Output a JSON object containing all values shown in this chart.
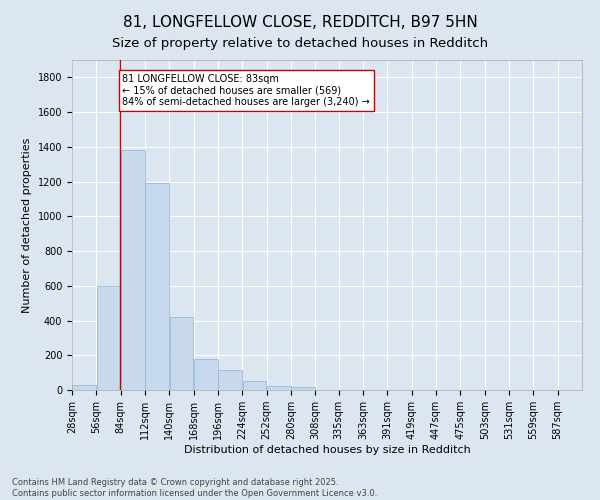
{
  "title": "81, LONGFELLOW CLOSE, REDDITCH, B97 5HN",
  "subtitle": "Size of property relative to detached houses in Redditch",
  "xlabel": "Distribution of detached houses by size in Redditch",
  "ylabel": "Number of detached properties",
  "bar_color": "#c8d9ed",
  "bar_edge_color": "#8ab4d8",
  "background_color": "#dce6f0",
  "fig_background_color": "#dce6f0",
  "grid_color": "#ffffff",
  "categories": [
    "28sqm",
    "56sqm",
    "84sqm",
    "112sqm",
    "140sqm",
    "168sqm",
    "196sqm",
    "224sqm",
    "252sqm",
    "280sqm",
    "308sqm",
    "335sqm",
    "363sqm",
    "391sqm",
    "419sqm",
    "447sqm",
    "475sqm",
    "503sqm",
    "531sqm",
    "559sqm",
    "587sqm"
  ],
  "bin_edges": [
    28,
    56,
    84,
    112,
    140,
    168,
    196,
    224,
    252,
    280,
    308,
    335,
    363,
    391,
    419,
    447,
    475,
    503,
    531,
    559,
    587,
    615
  ],
  "values": [
    30,
    600,
    1380,
    1190,
    420,
    180,
    115,
    50,
    25,
    20,
    0,
    0,
    0,
    0,
    0,
    0,
    0,
    0,
    0,
    0,
    0
  ],
  "ylim": [
    0,
    1900
  ],
  "yticks": [
    0,
    200,
    400,
    600,
    800,
    1000,
    1200,
    1400,
    1600,
    1800
  ],
  "property_sqm": 83,
  "vline_color": "#cc0000",
  "annotation_text": "81 LONGFELLOW CLOSE: 83sqm\n← 15% of detached houses are smaller (569)\n84% of semi-detached houses are larger (3,240) →",
  "annotation_box_color": "#ffffff",
  "annotation_box_edgecolor": "#cc0000",
  "footer_text": "Contains HM Land Registry data © Crown copyright and database right 2025.\nContains public sector information licensed under the Open Government Licence v3.0.",
  "title_fontsize": 11,
  "subtitle_fontsize": 9.5,
  "axis_label_fontsize": 8,
  "tick_fontsize": 7,
  "annotation_fontsize": 7,
  "footer_fontsize": 6
}
